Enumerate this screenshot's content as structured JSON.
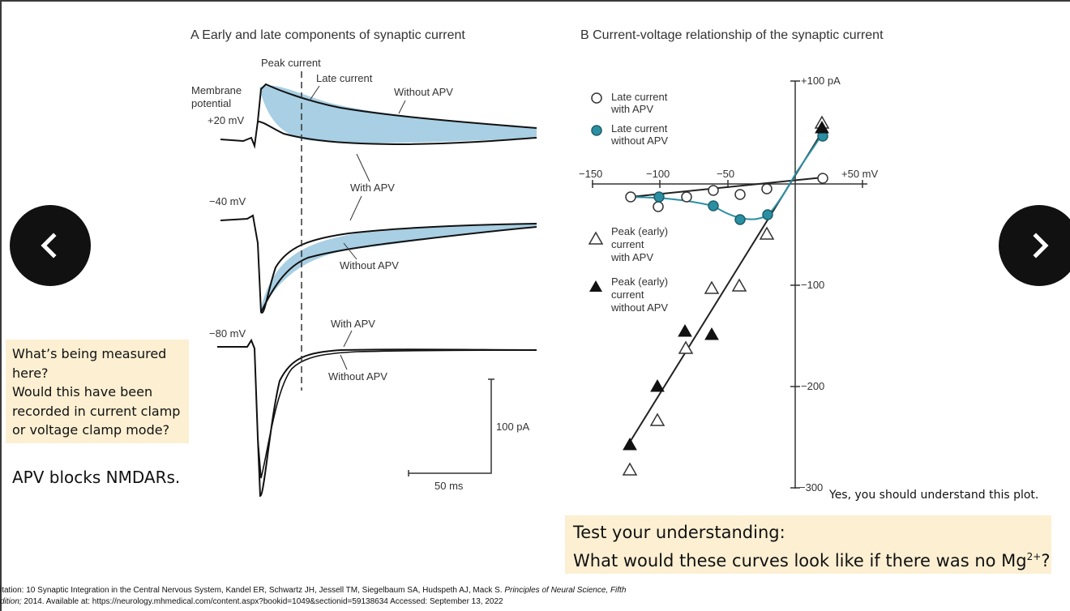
{
  "panel_a": {
    "title": "A  Early and late components of synaptic current",
    "labels": {
      "peak_current": "Peak current",
      "late_current": "Late current",
      "membrane_potential": "Membrane",
      "membrane_potential2": "potential",
      "v20": "+20 mV",
      "v40": "−40 mV",
      "v80": "−80 mV",
      "without_apv_1": "Without APV",
      "with_apv_1": "With APV",
      "without_apv_2": "Without APV",
      "with_apv_2": "With APV",
      "without_apv_3": "Without APV",
      "scale_pa": "100 pA",
      "scale_ms": "50 ms"
    }
  },
  "panel_b": {
    "title": "B  Current-voltage relationship of the synaptic current",
    "axis": {
      "x_ticks": [
        "−150",
        "−100",
        "−50",
        "+50 mV"
      ],
      "y_ticks": [
        "+100 pA",
        "−100",
        "−200",
        "−300"
      ]
    },
    "legend": {
      "late_with": [
        "Late current",
        "with APV"
      ],
      "late_without": [
        "Late current",
        "without APV"
      ],
      "peak_with": [
        "Peak (early)",
        "current",
        "with APV"
      ],
      "peak_without": [
        "Peak (early)",
        "current",
        "without APV"
      ]
    }
  },
  "notes": {
    "question1": [
      "What’s being measured",
      "here?",
      "Would this have been",
      "recorded in current clamp",
      "or voltage clamp mode?"
    ],
    "apv": "APV blocks NMDARs.",
    "understand": "Yes, you should understand this plot.",
    "test_line1": "Test your understanding:",
    "test_line2": "What would these curves look like if there was no Mg",
    "test_sup": "2+",
    "test_end": "?"
  },
  "citation": {
    "line1": "itation: 10 Synaptic Integration in the Central Nervous System, Kandel ER, Schwartz JH, Jessell TM, Siegelbaum SA, Hudspeth AJ, Mack S. ",
    "line1_italic": "Principles of Neural Science, Fifth",
    "line2_italic": "dition;",
    "line2": " 2014. Available at: https://neurology.mhmedical.com/content.aspx?bookid=1049&sectionid=59138634 Accessed: September 13, 2022"
  },
  "nav": {
    "prev_icon": "chevron-left-icon",
    "next_icon": "chevron-right-icon"
  },
  "colors": {
    "fill": "#a8cfe3",
    "teal": "#2b8fa3",
    "note_bg": "#fcefd2"
  }
}
